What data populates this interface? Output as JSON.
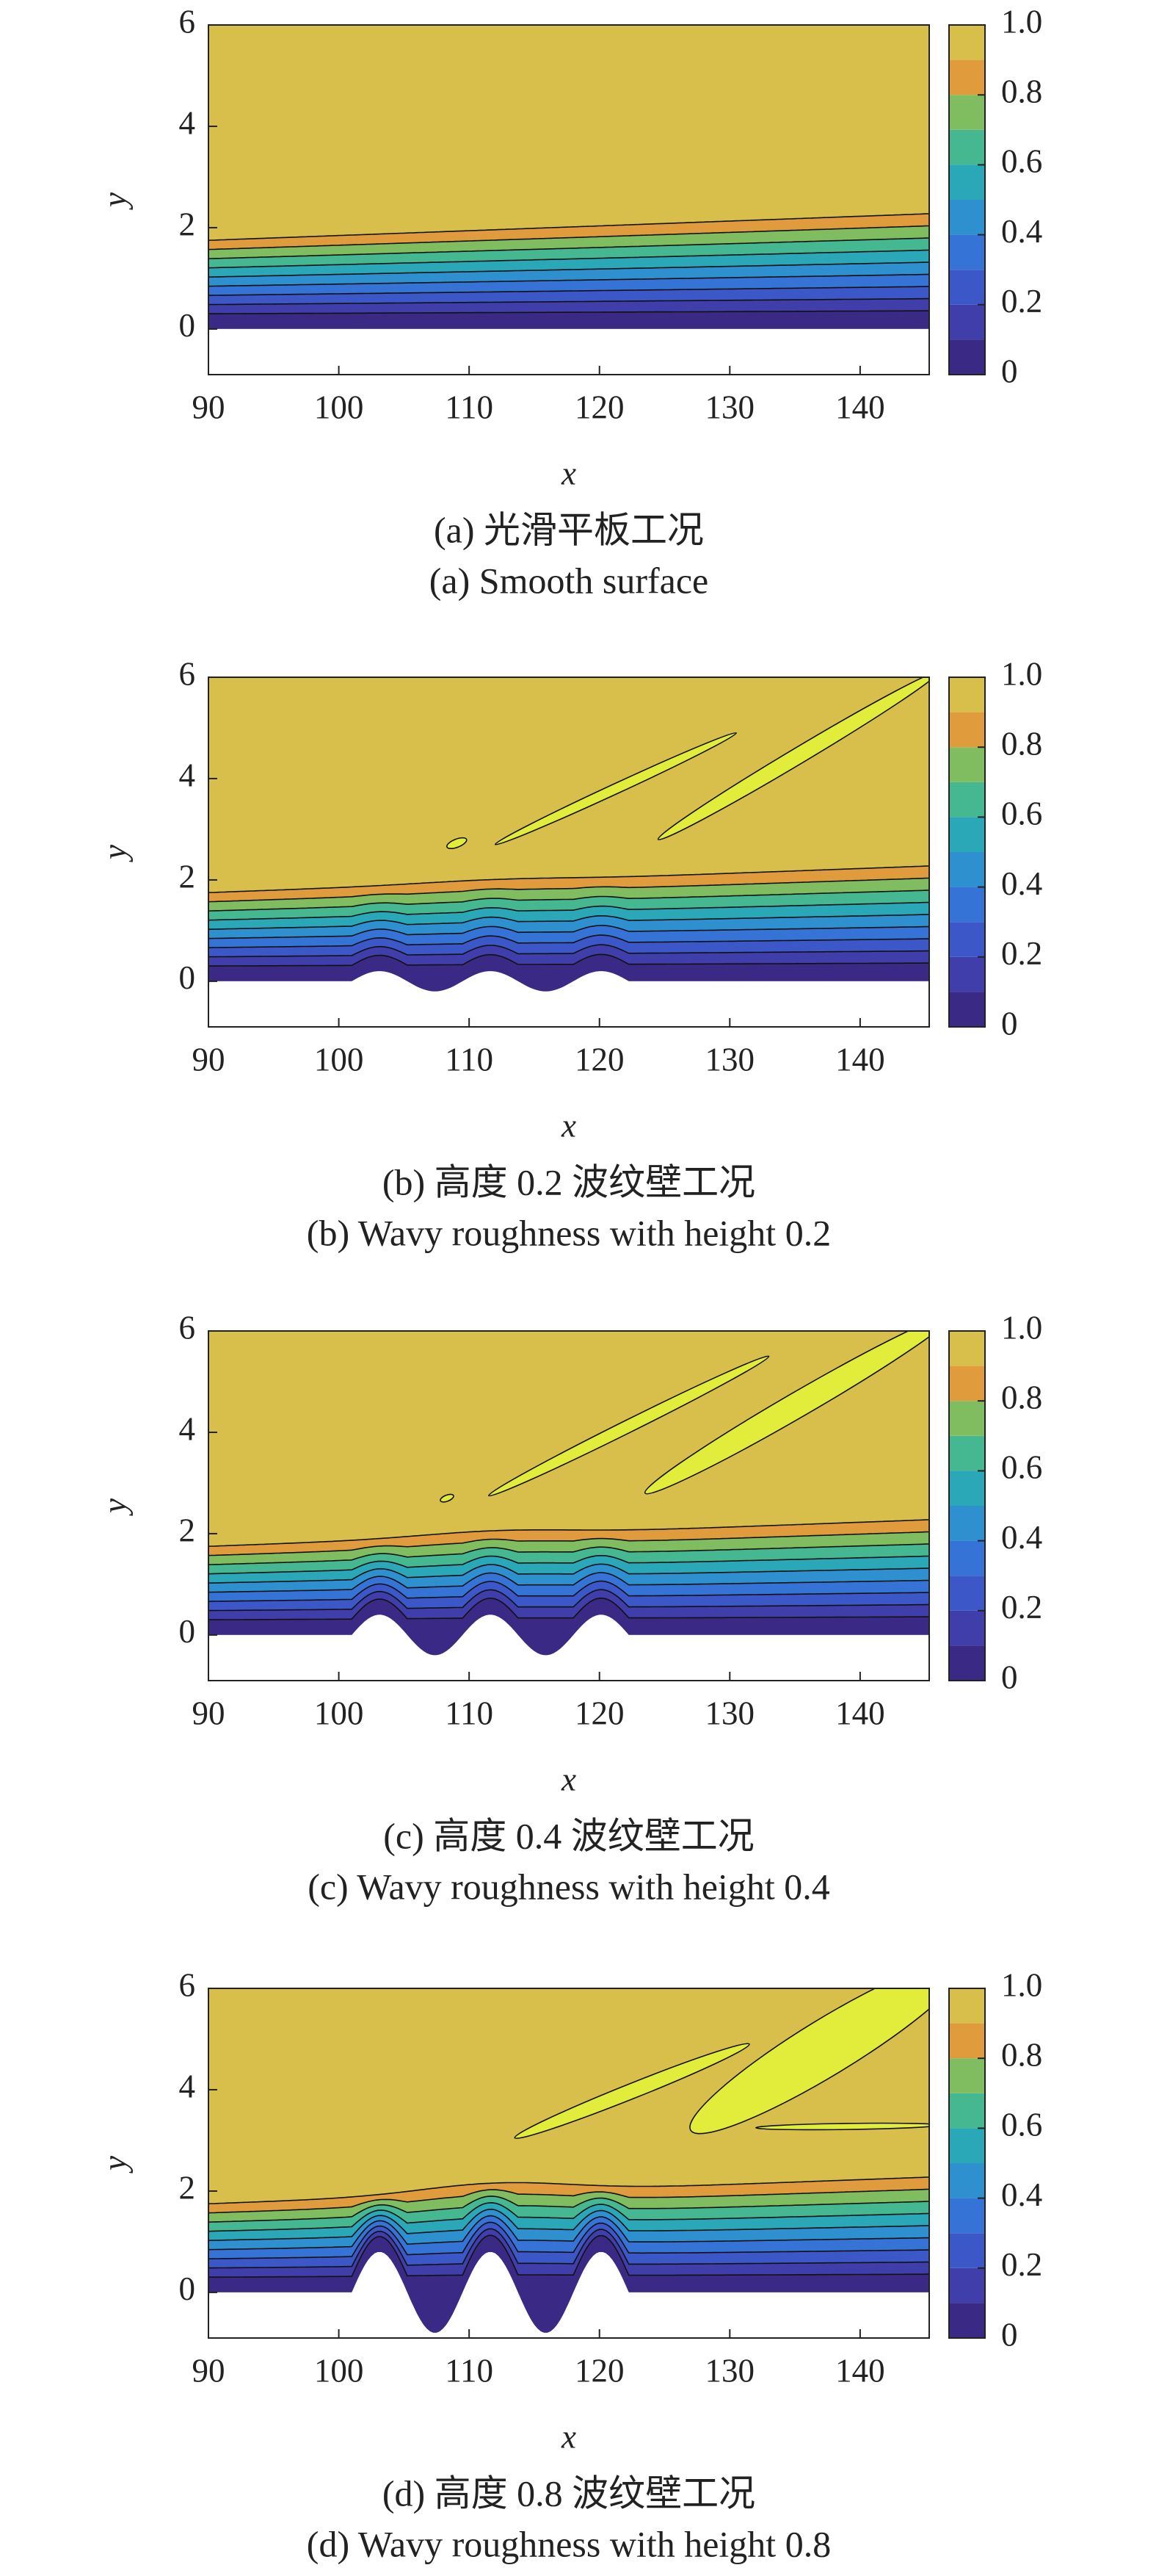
{
  "chart_data": [
    {
      "type": "contour",
      "xlabel": "x",
      "ylabel": "y",
      "caption_cn": "(a) 光滑平板工况",
      "caption_en": "(a) Smooth surface",
      "xlim": [
        90,
        145.3
      ],
      "ylim": [
        -0.9,
        6
      ],
      "xticks": [
        90,
        100,
        110,
        120,
        130,
        140
      ],
      "yticks": [
        0,
        2,
        4,
        6
      ],
      "colorbar": {
        "lim": [
          0,
          1
        ],
        "ticks": [
          0,
          0.2,
          0.4,
          0.6,
          0.8,
          {
            "value": 1,
            "label": "1.0"
          }
        ],
        "colors": [
          "#3b2a85",
          "#3f3eaa",
          "#3c57c8",
          "#3574d6",
          "#2f90d0",
          "#2aa8b8",
          "#45b892",
          "#7fbd60",
          "#e09b3c",
          "#d8bf4c"
        ]
      },
      "highlight_color": "#e2ec3a"
    },
    {
      "type": "contour",
      "xlabel": "x",
      "ylabel": "y",
      "caption_cn": "(b) 高度 0.2 波纹壁工况",
      "caption_en": "(b) Wavy roughness with height 0.2",
      "xlim": [
        90,
        145.3
      ],
      "ylim": [
        -0.9,
        6
      ],
      "xticks": [
        90,
        100,
        110,
        120,
        130,
        140
      ],
      "yticks": [
        0,
        2,
        4,
        6
      ],
      "colorbar": {
        "lim": [
          0,
          1
        ],
        "ticks": [
          0,
          0.2,
          0.4,
          0.6,
          0.8,
          {
            "value": 1,
            "label": "1.0"
          }
        ],
        "colors": [
          "#3b2a85",
          "#3f3eaa",
          "#3c57c8",
          "#3574d6",
          "#2f90d0",
          "#2aa8b8",
          "#45b892",
          "#7fbd60",
          "#e09b3c",
          "#d8bf4c"
        ]
      },
      "highlight_color": "#e2ec3a"
    },
    {
      "type": "contour",
      "xlabel": "x",
      "ylabel": "y",
      "caption_cn": "(c) 高度 0.4 波纹壁工况",
      "caption_en": "(c) Wavy roughness with height 0.4",
      "xlim": [
        90,
        145.3
      ],
      "ylim": [
        -0.9,
        6
      ],
      "xticks": [
        90,
        100,
        110,
        120,
        130,
        140
      ],
      "yticks": [
        0,
        2,
        4,
        6
      ],
      "colorbar": {
        "lim": [
          0,
          1
        ],
        "ticks": [
          0,
          0.2,
          0.4,
          0.6,
          0.8,
          {
            "value": 1,
            "label": "1.0"
          }
        ],
        "colors": [
          "#3b2a85",
          "#3f3eaa",
          "#3c57c8",
          "#3574d6",
          "#2f90d0",
          "#2aa8b8",
          "#45b892",
          "#7fbd60",
          "#e09b3c",
          "#d8bf4c"
        ]
      },
      "highlight_color": "#e2ec3a"
    },
    {
      "type": "contour",
      "xlabel": "x",
      "ylabel": "y",
      "caption_cn": "(d) 高度 0.8 波纹壁工况",
      "caption_en": "(d) Wavy roughness with height 0.8",
      "xlim": [
        90,
        145.3
      ],
      "ylim": [
        -0.9,
        6
      ],
      "xticks": [
        90,
        100,
        110,
        120,
        130,
        140
      ],
      "yticks": [
        0,
        2,
        4,
        6
      ],
      "colorbar": {
        "lim": [
          0,
          1
        ],
        "ticks": [
          0,
          0.2,
          0.4,
          0.6,
          0.8,
          {
            "value": 1,
            "label": "1.0"
          }
        ],
        "colors": [
          "#3b2a85",
          "#3f3eaa",
          "#3c57c8",
          "#3574d6",
          "#2f90d0",
          "#2aa8b8",
          "#45b892",
          "#7fbd60",
          "#e09b3c",
          "#d8bf4c"
        ]
      },
      "highlight_color": "#e2ec3a"
    }
  ]
}
